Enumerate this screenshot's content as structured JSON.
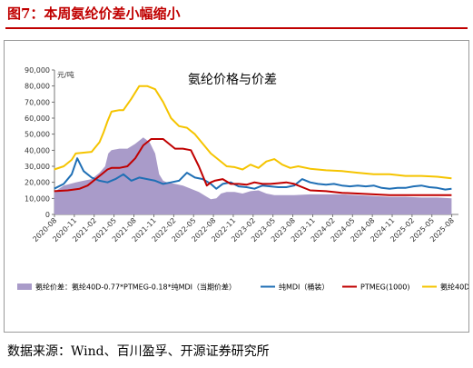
{
  "figure": {
    "title": "图7：本周氨纶价差小幅缩小",
    "source": "数据来源：Wind、百川盈孚、开源证券研究所"
  },
  "chart_data": {
    "type": "line",
    "title": "氨纶价格与价差",
    "ylabel": "元/吨",
    "ylim": [
      0,
      90000
    ],
    "yticks": [
      "0",
      "10,000",
      "20,000",
      "30,000",
      "40,000",
      "50,000",
      "60,000",
      "70,000",
      "80,000",
      "90,000"
    ],
    "xlabels": [
      "2020-08",
      "2020-11",
      "2021-02",
      "2021-05",
      "2021-08",
      "2021-11",
      "2022-02",
      "2022-05",
      "2022-08",
      "2022-11",
      "2023-02",
      "2023-05",
      "2023-08",
      "2023-11",
      "2024-02",
      "2024-05",
      "2024-08",
      "2024-11",
      "2025-02",
      "2025-05",
      "2025-08"
    ],
    "xrange": [
      2020.583,
      2025.667
    ],
    "grid": false,
    "legend_position": "bottom",
    "colors": {
      "spread": "#a99bc9",
      "pure_mdi": "#1f6fb5",
      "ptmeg": "#c00000",
      "spandex40d": "#f5c400"
    },
    "series": [
      {
        "name": "氨纶价差：氨纶40D-0.77*PTMEG-0.18*纯MDI（当期价差）",
        "key": "spread",
        "style": "area",
        "x": [
          2020.58,
          2020.7,
          2020.85,
          2020.95,
          2021.05,
          2021.15,
          2021.22,
          2021.26,
          2021.3,
          2021.4,
          2021.5,
          2021.6,
          2021.7,
          2021.78,
          2021.85,
          2021.9,
          2021.95,
          2022.0,
          2022.1,
          2022.2,
          2022.3,
          2022.4,
          2022.5,
          2022.55,
          2022.62,
          2022.68,
          2022.75,
          2022.85,
          2022.95,
          2023.05,
          2023.15,
          2023.25,
          2023.35,
          2023.45,
          2023.6,
          2023.8,
          2024.0,
          2024.2,
          2024.4,
          2024.6,
          2024.8,
          2025.0,
          2025.2,
          2025.4,
          2025.58
        ],
        "y": [
          14000,
          18000,
          20000,
          21000,
          22000,
          26000,
          30000,
          38000,
          40000,
          41000,
          41000,
          44000,
          48000,
          45000,
          38000,
          25000,
          21000,
          20000,
          19000,
          18000,
          16000,
          14000,
          11000,
          9500,
          10000,
          13000,
          14000,
          14000,
          13000,
          14500,
          15000,
          13000,
          12000,
          12000,
          12000,
          12500,
          12500,
          12500,
          12000,
          11500,
          11000,
          11000,
          10500,
          10500,
          10000
        ]
      },
      {
        "name": "纯MDI（桶装）",
        "key": "pure_mdi",
        "style": "line",
        "x": [
          2020.58,
          2020.7,
          2020.8,
          2020.87,
          2020.95,
          2021.05,
          2021.15,
          2021.25,
          2021.35,
          2021.45,
          2021.55,
          2021.65,
          2021.75,
          2021.85,
          2021.95,
          2022.05,
          2022.15,
          2022.25,
          2022.35,
          2022.45,
          2022.55,
          2022.62,
          2022.7,
          2022.8,
          2022.9,
          2023.0,
          2023.1,
          2023.2,
          2023.3,
          2023.4,
          2023.5,
          2023.6,
          2023.7,
          2023.8,
          2023.9,
          2024.0,
          2024.1,
          2024.2,
          2024.3,
          2024.4,
          2024.5,
          2024.6,
          2024.7,
          2024.8,
          2024.9,
          2025.0,
          2025.1,
          2025.2,
          2025.3,
          2025.4,
          2025.5,
          2025.58
        ],
        "y": [
          16000,
          19000,
          25000,
          35000,
          27000,
          23000,
          21000,
          20000,
          22000,
          25000,
          21000,
          23000,
          22000,
          21000,
          19000,
          20000,
          21000,
          26000,
          23000,
          22000,
          19000,
          16000,
          19000,
          20000,
          17500,
          17000,
          16000,
          18000,
          17500,
          17000,
          17000,
          18000,
          22000,
          20000,
          19000,
          18500,
          19000,
          18000,
          17500,
          18000,
          17500,
          18000,
          16500,
          16000,
          16500,
          16500,
          17500,
          18000,
          17000,
          16500,
          15500,
          16000
        ]
      },
      {
        "name": "PTMEG(1000)",
        "key": "ptmeg",
        "style": "line",
        "x": [
          2020.58,
          2020.75,
          2020.9,
          2021.0,
          2021.1,
          2021.2,
          2021.25,
          2021.3,
          2021.4,
          2021.5,
          2021.6,
          2021.7,
          2021.8,
          2021.85,
          2021.95,
          2022.0,
          2022.1,
          2022.2,
          2022.3,
          2022.4,
          2022.5,
          2022.55,
          2022.6,
          2022.7,
          2022.8,
          2022.9,
          2023.0,
          2023.1,
          2023.2,
          2023.3,
          2023.4,
          2023.5,
          2023.6,
          2023.8,
          2024.0,
          2024.2,
          2024.4,
          2024.6,
          2024.8,
          2025.0,
          2025.2,
          2025.4,
          2025.58
        ],
        "y": [
          14500,
          15000,
          16000,
          18000,
          22000,
          26000,
          28000,
          29000,
          29000,
          30000,
          35000,
          43000,
          47000,
          47000,
          47000,
          45000,
          41000,
          41000,
          40000,
          30000,
          18000,
          20000,
          21000,
          22000,
          19000,
          19000,
          18500,
          20000,
          19000,
          19000,
          19500,
          20000,
          19000,
          15000,
          14500,
          13500,
          13000,
          12500,
          12000,
          12000,
          12000,
          12000,
          12000
        ]
      },
      {
        "name": "氨纶40D",
        "key": "spandex40d",
        "style": "line",
        "x": [
          2020.58,
          2020.7,
          2020.8,
          2020.85,
          2020.95,
          2021.05,
          2021.15,
          2021.2,
          2021.25,
          2021.3,
          2021.35,
          2021.4,
          2021.45,
          2021.55,
          2021.65,
          2021.75,
          2021.85,
          2021.95,
          2022.05,
          2022.15,
          2022.25,
          2022.35,
          2022.45,
          2022.55,
          2022.65,
          2022.75,
          2022.85,
          2022.95,
          2023.05,
          2023.15,
          2023.25,
          2023.35,
          2023.45,
          2023.55,
          2023.65,
          2023.8,
          2024.0,
          2024.2,
          2024.4,
          2024.6,
          2024.8,
          2025.0,
          2025.2,
          2025.4,
          2025.58
        ],
        "y": [
          28000,
          30000,
          34000,
          38000,
          38500,
          39000,
          45000,
          51000,
          58000,
          64000,
          64500,
          65000,
          65000,
          72000,
          80000,
          80000,
          78000,
          70000,
          60000,
          55000,
          54000,
          50000,
          44000,
          38000,
          34000,
          30000,
          29500,
          28000,
          31000,
          29000,
          33000,
          34500,
          31000,
          29000,
          30000,
          28500,
          27500,
          27000,
          26000,
          25000,
          25000,
          24000,
          24000,
          23500,
          22500
        ]
      }
    ]
  }
}
